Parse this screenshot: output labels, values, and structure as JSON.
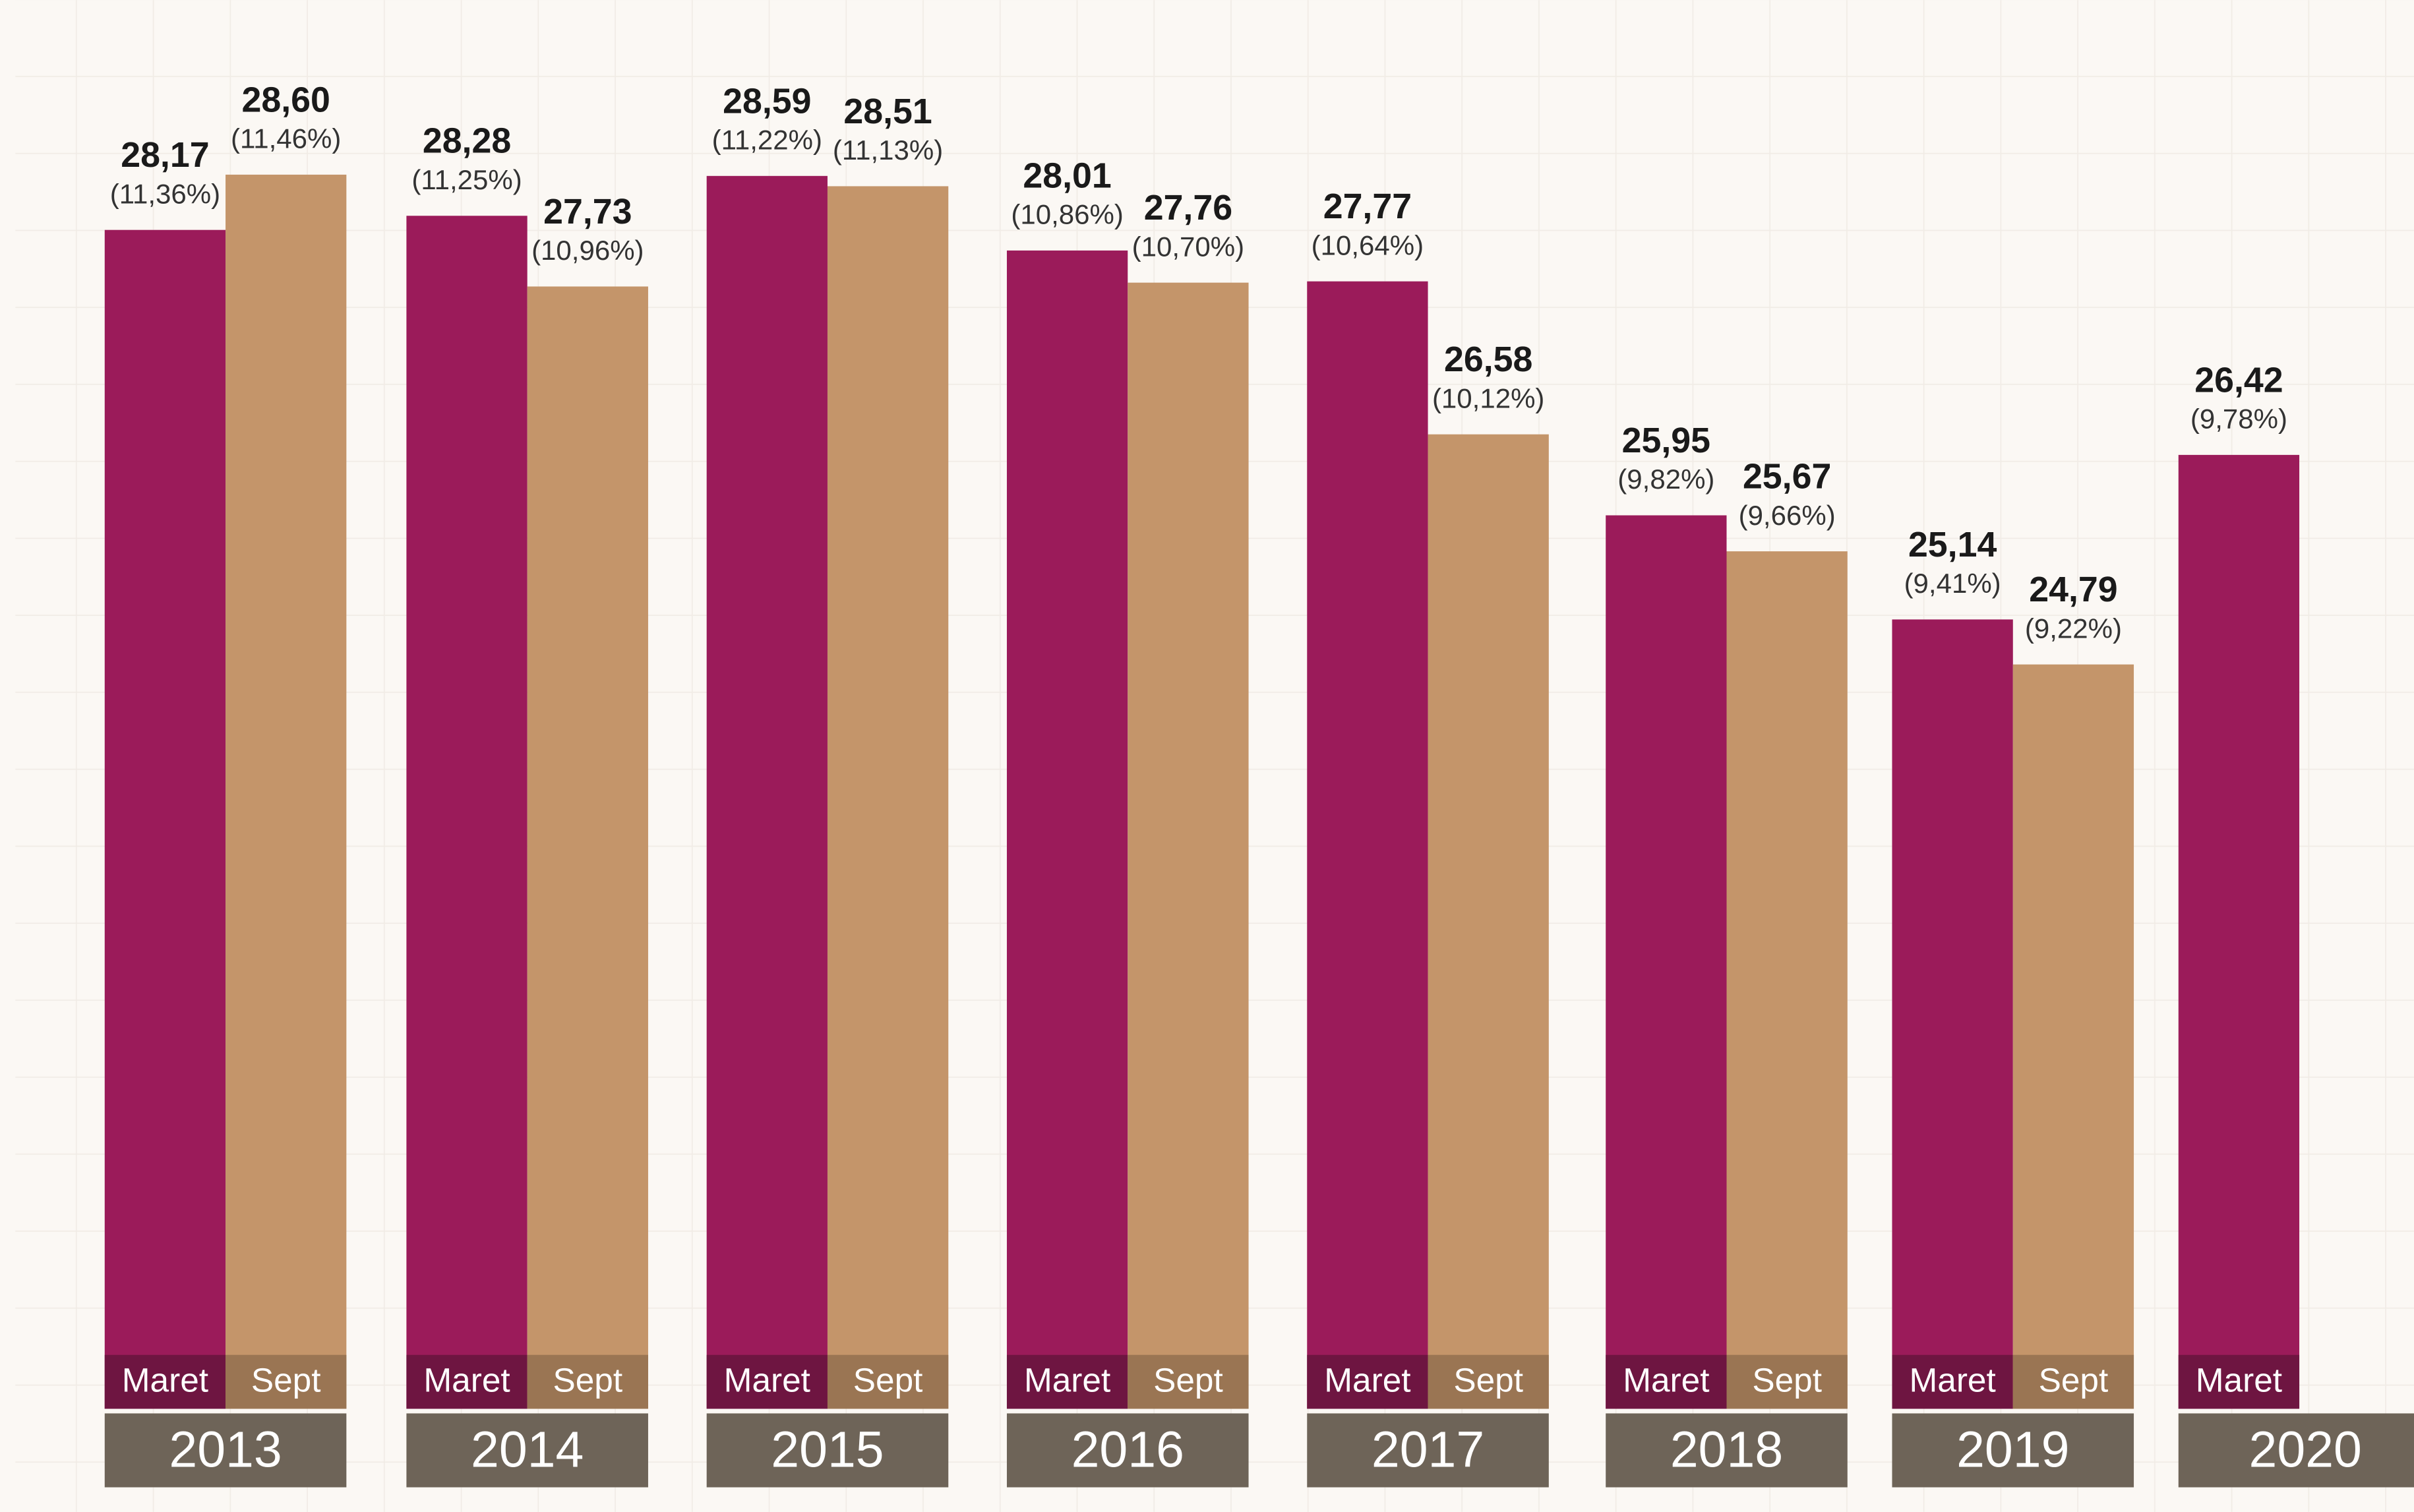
{
  "chart_data": {
    "type": "bar",
    "categories": [
      "2013",
      "2014",
      "2015",
      "2016",
      "2017",
      "2018",
      "2019",
      "2020"
    ],
    "series": [
      {
        "name": "Maret",
        "color": "#9b1b5a",
        "values": [
          28.17,
          28.28,
          28.59,
          28.01,
          27.77,
          25.95,
          25.14,
          26.42
        ],
        "value_labels": [
          "28,17",
          "28,28",
          "28,59",
          "28,01",
          "27,77",
          "25,95",
          "25,14",
          "26,42"
        ],
        "percents": [
          11.36,
          11.25,
          11.22,
          10.86,
          10.64,
          9.82,
          9.41,
          9.78
        ],
        "percent_labels": [
          "(11,36%)",
          "(11,25%)",
          "(11,22%)",
          "(10,86%)",
          "(10,64%)",
          "(9,82%)",
          "(9,41%)",
          "(9,78%)"
        ]
      },
      {
        "name": "Sept",
        "color": "#c4956a",
        "values": [
          28.6,
          27.73,
          28.51,
          27.76,
          26.58,
          25.67,
          24.79,
          null
        ],
        "value_labels": [
          "28,60",
          "27,73",
          "28,51",
          "27,76",
          "26,58",
          "25,67",
          "24,79",
          null
        ],
        "percents": [
          11.46,
          10.96,
          11.13,
          10.7,
          10.12,
          9.66,
          9.22,
          null
        ],
        "percent_labels": [
          "(11,46%)",
          "(10,96%)",
          "(11,13%)",
          "(10,70%)",
          "(10,12%)",
          "(9,66%)",
          "(9,22%)",
          null
        ]
      }
    ],
    "ylim": [
      19,
      29
    ]
  }
}
